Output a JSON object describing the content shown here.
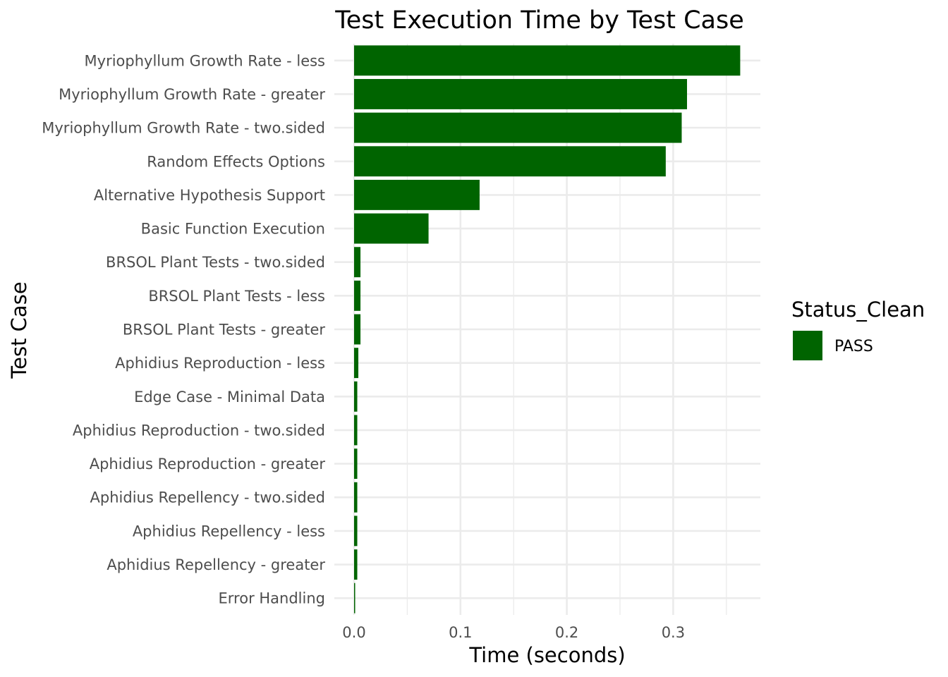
{
  "chart_data": {
    "type": "bar",
    "orientation": "horizontal",
    "title": "Test Execution Time by Test Case",
    "xlabel": "Time (seconds)",
    "ylabel": "Test Case",
    "xlim": [
      0,
      0.38
    ],
    "xticks": [
      0.0,
      0.1,
      0.2,
      0.3
    ],
    "xtick_labels": [
      "0.0",
      "0.1",
      "0.2",
      "0.3"
    ],
    "grid": true,
    "legend": {
      "title": "Status_Clean",
      "position": "right",
      "entries": [
        {
          "label": "PASS",
          "color": "#006400"
        }
      ]
    },
    "categories": [
      "Myriophyllum Growth Rate - less",
      "Myriophyllum Growth Rate - greater",
      "Myriophyllum Growth Rate - two.sided",
      "Random Effects Options",
      "Alternative Hypothesis Support",
      "Basic Function Execution",
      "BRSOL Plant Tests - two.sided",
      "BRSOL Plant Tests - less",
      "BRSOL Plant Tests - greater",
      "Aphidius Reproduction - less",
      "Edge Case - Minimal Data",
      "Aphidius Reproduction - two.sided",
      "Aphidius Reproduction - greater",
      "Aphidius Repellency - two.sided",
      "Aphidius Repellency - less",
      "Aphidius Repellency - greater",
      "Error Handling"
    ],
    "series": [
      {
        "name": "PASS",
        "color": "#006400",
        "values": [
          0.363,
          0.313,
          0.308,
          0.293,
          0.118,
          0.07,
          0.006,
          0.006,
          0.006,
          0.004,
          0.003,
          0.003,
          0.003,
          0.003,
          0.003,
          0.003,
          0.001
        ]
      }
    ]
  }
}
